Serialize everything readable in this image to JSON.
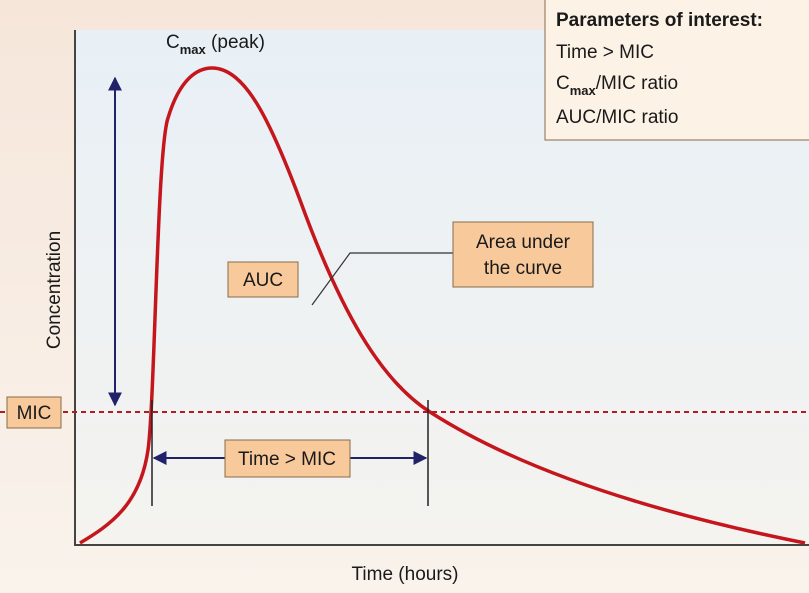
{
  "peak_label": {
    "base": "C",
    "sub": "max",
    "rest": " (peak)"
  },
  "parameters": {
    "title": "Parameters of interest:",
    "items": [
      {
        "base": "Time > MIC"
      },
      {
        "base": "C",
        "sub": "max",
        "rest": "/MIC ratio"
      },
      {
        "base": "AUC/MIC ratio"
      }
    ]
  },
  "auc_label": "AUC",
  "area_label": [
    "Area under",
    "the curve"
  ],
  "mic_label": "MIC",
  "time_above_mic_label": "Time > MIC",
  "y_axis_label": "Concentration",
  "x_axis_label": "Time (hours)"
}
